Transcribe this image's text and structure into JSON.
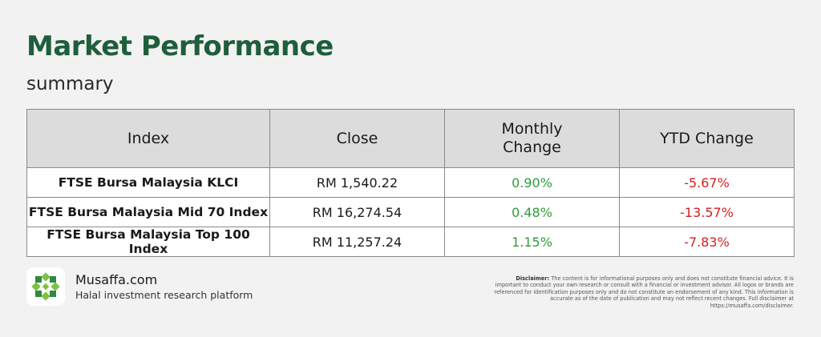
{
  "header": {
    "title": "Market Performance",
    "subtitle": "summary"
  },
  "table": {
    "columns": [
      "Index",
      "Close",
      "Monthly Change",
      "YTD Change"
    ],
    "rows": [
      {
        "index": "FTSE Bursa Malaysia KLCI",
        "close": "RM 1,540.22",
        "monthly": "0.90%",
        "ytd": "-5.67%"
      },
      {
        "index": "FTSE Bursa Malaysia Mid 70 Index",
        "close": "RM 16,274.54",
        "monthly": "0.48%",
        "ytd": "-13.57%"
      },
      {
        "index": "FTSE Bursa Malaysia Top 100 Index",
        "close": "RM 11,257.24",
        "monthly": "1.15%",
        "ytd": "-7.83%"
      }
    ]
  },
  "colors": {
    "title": "#1f5e3b",
    "positive": "#2e9d3a",
    "negative": "#d42020",
    "header_bg": "#dcdcdc",
    "logo_green": "#7cc242",
    "logo_dark_green": "#2e8b3e"
  },
  "footer": {
    "logo_icon": "musaffa-star-icon",
    "brand_name": "Musaffa.com",
    "tagline": "Halal investment research platform",
    "disclaimer_label": "Disclaimer:",
    "disclaimer_text": "The content is for informational purposes only and does not constitute financial advice. It is important to conduct your own research or consult with a financial or investment advisor. All logos or brands are referenced for identification purposes only and do not constitute an endorsement of any kind. This information is accurate as of the date of publication and may not reflect recent changes. Full disclaimer at https://musaffa.com/disclaimer."
  }
}
